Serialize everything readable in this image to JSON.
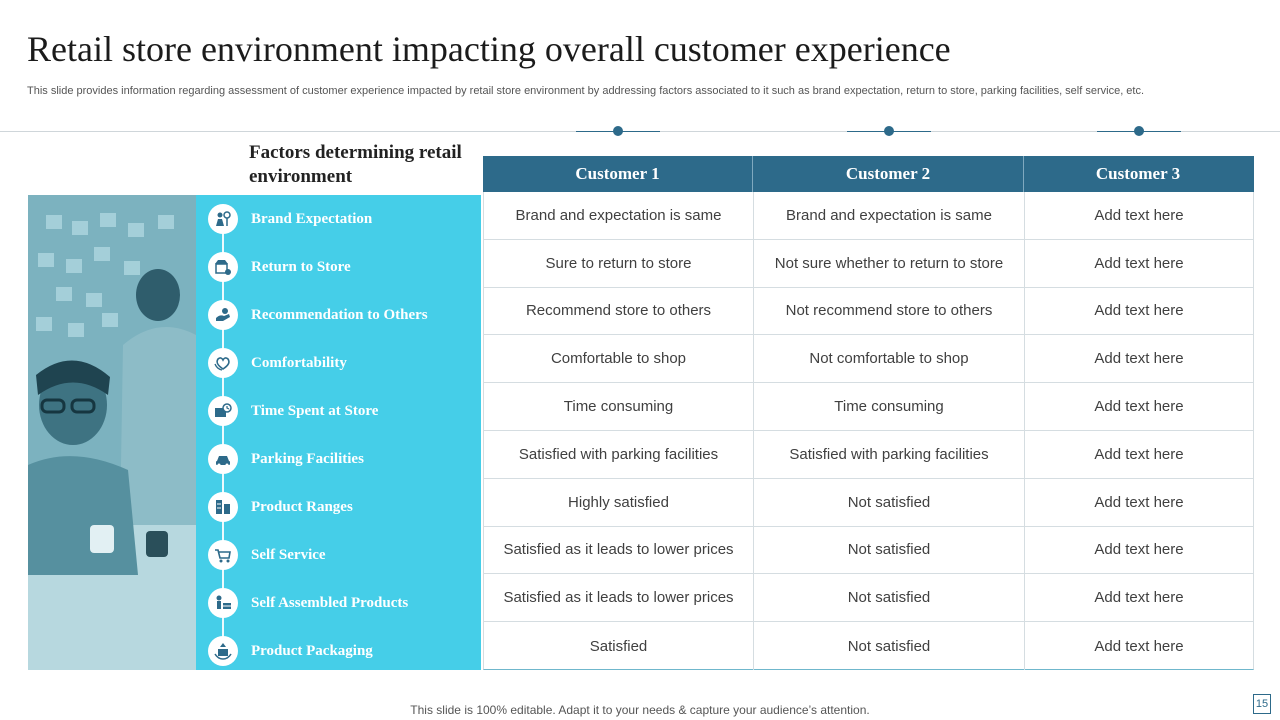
{
  "slide": {
    "title": "Retail store environment impacting overall customer experience",
    "subtitle": "This slide provides information regarding assessment of customer experience impacted by retail store environment by addressing factors associated to it such as brand expectation, return to store, parking facilities, self service, etc.",
    "footer": "This slide is 100% editable. Adapt it to your needs & capture your audience’s attention.",
    "page_number": "15"
  },
  "colors": {
    "accent_dark": "#2d6a8a",
    "accent_cyan": "#45cee8"
  },
  "factors": {
    "heading": "Factors determining retail environment",
    "items": [
      {
        "label": "Brand Expectation",
        "icon": "brand-icon"
      },
      {
        "label": "Return to Store",
        "icon": "store-return-icon"
      },
      {
        "label": "Recommendation  to Others",
        "icon": "recommend-icon"
      },
      {
        "label": "Comfortability",
        "icon": "comfort-icon"
      },
      {
        "label": "Time Spent at Store",
        "icon": "time-icon"
      },
      {
        "label": "Parking Facilities",
        "icon": "parking-icon"
      },
      {
        "label": "Product  Ranges",
        "icon": "product-range-icon"
      },
      {
        "label": "Self Service",
        "icon": "self-service-icon"
      },
      {
        "label": "Self Assembled Products",
        "icon": "assembled-icon"
      },
      {
        "label": "Product  Packaging",
        "icon": "packaging-icon"
      }
    ]
  },
  "table": {
    "headers": [
      "Customer 1",
      "Customer 2",
      "Customer 3"
    ],
    "rows": [
      [
        "Brand and expectation is same",
        "Brand and expectation is same",
        "Add text here"
      ],
      [
        "Sure to return to store",
        "Not sure whether to return to store",
        "Add text here"
      ],
      [
        "Recommend store to others",
        "Not recommend store to others",
        "Add text here"
      ],
      [
        "Comfortable to shop",
        "Not comfortable to shop",
        "Add text here"
      ],
      [
        "Time consuming",
        "Time consuming",
        "Add text here"
      ],
      [
        "Satisfied with parking facilities",
        "Satisfied with parking facilities",
        "Add text here"
      ],
      [
        "Highly satisfied",
        "Not satisfied",
        "Add text here"
      ],
      [
        "Satisfied as it leads to lower prices",
        "Not satisfied",
        "Add text here"
      ],
      [
        "Satisfied as it leads to lower prices",
        "Not satisfied",
        "Add text here"
      ],
      [
        "Satisfied",
        "Not satisfied",
        "Add text here"
      ]
    ]
  }
}
